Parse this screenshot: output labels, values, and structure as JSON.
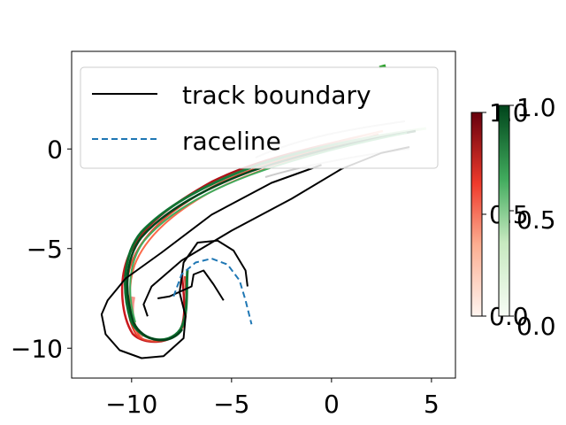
{
  "chart_data": {
    "type": "line",
    "title": "",
    "xlabel": "",
    "ylabel": "",
    "xlim": [
      -13,
      6.2
    ],
    "ylim": [
      -11.5,
      4.9
    ],
    "x_ticks": [
      "−10",
      "−5",
      "0",
      "5"
    ],
    "x_tick_values": [
      -10,
      -5,
      0,
      5
    ],
    "y_ticks": [
      "0",
      "−5",
      "−10"
    ],
    "y_tick_values": [
      0,
      -5,
      -10
    ],
    "grid": false,
    "legend_position": "upper-left",
    "legend": [
      {
        "label": "track boundary",
        "style": "solid",
        "color": "#000000"
      },
      {
        "label": "raceline",
        "style": "dashed",
        "color": "#1f77b4"
      }
    ],
    "series": [
      {
        "name": "track boundary",
        "style": "solid",
        "color": "#000000",
        "segments": [
          [
            [
              -0.5,
              -0.8
            ],
            [
              -3,
              -1.7
            ],
            [
              -6,
              -3.3
            ],
            [
              -8.5,
              -5.2
            ],
            [
              -10.3,
              -6.5
            ],
            [
              -11.2,
              -7.6
            ],
            [
              -11.5,
              -8.3
            ],
            [
              -11.3,
              -9.3
            ],
            [
              -10.6,
              -10.1
            ],
            [
              -9.5,
              -10.5
            ],
            [
              -8.4,
              -10.4
            ],
            [
              -7.4,
              -9.5
            ],
            [
              -7.3,
              -8.4
            ],
            [
              -7.6,
              -7.2
            ],
            [
              -7.4,
              -5.7
            ],
            [
              -6.7,
              -4.7
            ],
            [
              -5.7,
              -4.6
            ],
            [
              -4.9,
              -5.1
            ],
            [
              -4.3,
              -6.1
            ],
            [
              -4.2,
              -6.9
            ]
          ],
          [
            [
              -9.2,
              -8.4
            ],
            [
              -9.4,
              -7.8
            ],
            [
              -9,
              -6.9
            ],
            [
              -7.5,
              -5.6
            ],
            [
              -5,
              -4.1
            ],
            [
              -2,
              -2.5
            ],
            [
              0.5,
              -1
            ],
            [
              2.5,
              -0.2
            ],
            [
              3.9,
              0.1
            ]
          ],
          [
            [
              -5.4,
              -7.6
            ],
            [
              -5.9,
              -6.8
            ],
            [
              -6.4,
              -6.1
            ],
            [
              -6.9,
              -6.3
            ],
            [
              -7.0,
              -6.9
            ],
            [
              -8.1,
              -7.4
            ],
            [
              -8.7,
              -7.5
            ]
          ]
        ]
      },
      {
        "name": "raceline",
        "style": "dashed",
        "color": "#1f77b4",
        "segments": [
          [
            [
              -7.9,
              -7.4
            ],
            [
              -7.5,
              -6.3
            ],
            [
              -6.8,
              -5.7
            ],
            [
              -6.0,
              -5.5
            ],
            [
              -5.2,
              -5.8
            ],
            [
              -4.6,
              -6.6
            ],
            [
              -4.3,
              -7.6
            ],
            [
              -4.0,
              -8.8
            ]
          ]
        ]
      }
    ],
    "colorbars": [
      {
        "colormap": "Reds",
        "range": [
          0,
          1
        ],
        "ticks": [
          "0.0",
          "0.5",
          "1.0"
        ]
      },
      {
        "colormap": "Greens",
        "range": [
          0,
          1
        ],
        "ticks": [
          "0.0",
          "0.5",
          "1.0"
        ]
      }
    ]
  }
}
